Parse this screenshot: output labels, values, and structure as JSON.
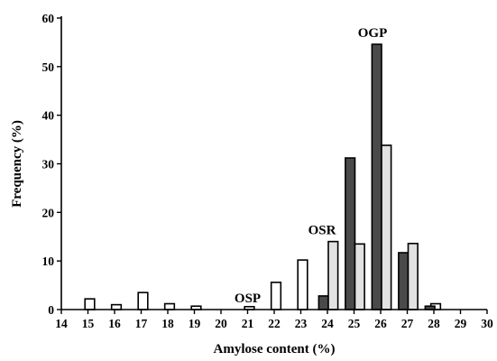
{
  "chart_data": {
    "type": "bar",
    "xlabel": "Amylose content (%)",
    "ylabel": "Frequency (%)",
    "xlim": [
      14,
      30
    ],
    "ylim": [
      0,
      60
    ],
    "x_ticks": [
      14,
      15,
      16,
      17,
      18,
      19,
      20,
      21,
      22,
      23,
      24,
      25,
      26,
      27,
      28,
      29,
      30
    ],
    "y_ticks": [
      0,
      10,
      20,
      30,
      40,
      50,
      60
    ],
    "grid": false,
    "legend": "none",
    "colors": {
      "dark": "#4a4a4a",
      "light": "#e2e2e2",
      "white": "#ffffff"
    },
    "series": [
      {
        "style": "white",
        "points": [
          {
            "x": 15,
            "y": 2.2
          },
          {
            "x": 16,
            "y": 1.0
          },
          {
            "x": 17,
            "y": 3.5
          },
          {
            "x": 18,
            "y": 1.2
          },
          {
            "x": 19,
            "y": 0.7
          },
          {
            "x": 21,
            "y": 0.6
          },
          {
            "x": 22,
            "y": 5.6
          },
          {
            "x": 23,
            "y": 10.2
          },
          {
            "x": 28,
            "y": 1.2
          }
        ]
      },
      {
        "style": "dark",
        "points": [
          {
            "x": 24,
            "y": 2.8
          },
          {
            "x": 25,
            "y": 31.2
          },
          {
            "x": 26,
            "y": 54.6
          },
          {
            "x": 27,
            "y": 11.7
          },
          {
            "x": 28,
            "y": 0.7
          }
        ]
      },
      {
        "style": "light",
        "points": [
          {
            "x": 24,
            "y": 14.0
          },
          {
            "x": 25,
            "y": 13.5
          },
          {
            "x": 26,
            "y": 33.8
          },
          {
            "x": 27,
            "y": 13.6
          }
        ]
      }
    ],
    "annotations": [
      {
        "text": "OSP",
        "x": 21,
        "y": 0.6
      },
      {
        "text": "OSR",
        "x": 24,
        "y": 14.0
      },
      {
        "text": "OGP",
        "x": 26,
        "y": 54.6
      }
    ]
  }
}
